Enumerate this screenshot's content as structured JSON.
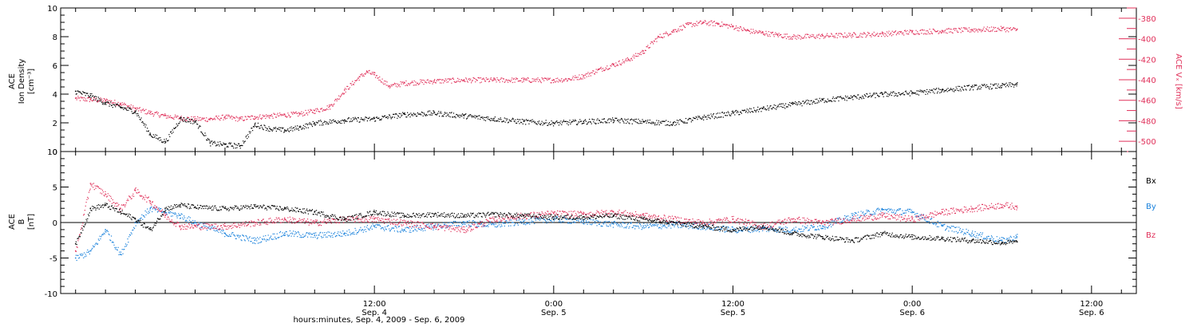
{
  "colors": {
    "black": "#000000",
    "pink": "#e0305a",
    "blue": "#1a82dc"
  },
  "x_axis": {
    "hours_range": [
      -9,
      63
    ],
    "major_hours": [
      12,
      24,
      36,
      48,
      60
    ],
    "major_time_labels": [
      "12:00",
      "0:00",
      "12:00",
      "0:00",
      "12:00"
    ],
    "major_date_labels": [
      "Sep. 4",
      "Sep. 5",
      "Sep. 5",
      "Sep. 6",
      "Sep. 6"
    ],
    "minor_step_hours": 2,
    "title": "hours:minutes, Sep.  4, 2009 - Sep.  6, 2009"
  },
  "chart_data": [
    {
      "type": "scatter",
      "panel": "top",
      "ylabel_lines": [
        "ACE",
        "Ion Density",
        "[cm⁻³]"
      ],
      "ylim": [
        0,
        10
      ],
      "yticks": [
        0,
        2,
        4,
        6,
        8,
        10
      ],
      "y2label": "ACE Vₓ [km/s]",
      "y2lim": [
        -510,
        -370
      ],
      "y2ticks": [
        -380,
        -400,
        -420,
        -440,
        -460,
        -480,
        -500
      ],
      "series": [
        {
          "name": "",
          "axis": "left",
          "color": "#000000",
          "x": [
            -8,
            -7,
            -6,
            -5,
            -4,
            -3,
            -2,
            -1,
            0,
            1,
            2,
            3,
            4,
            5,
            6,
            7,
            8,
            10,
            12,
            14,
            16,
            18,
            20,
            22,
            24,
            26,
            28,
            30,
            32,
            34,
            36,
            38,
            40,
            42,
            44,
            46,
            48,
            50,
            52,
            54,
            55
          ],
          "y": [
            4.2,
            3.9,
            3.4,
            3.1,
            2.8,
            1.2,
            0.7,
            2.3,
            2.1,
            0.6,
            0.5,
            0.4,
            1.9,
            1.6,
            1.5,
            1.7,
            2.0,
            2.2,
            2.3,
            2.6,
            2.7,
            2.5,
            2.3,
            2.1,
            2.0,
            2.1,
            2.2,
            2.1,
            2.0,
            2.4,
            2.7,
            3.0,
            3.3,
            3.6,
            3.8,
            4.0,
            4.1,
            4.3,
            4.5,
            4.6,
            4.7
          ]
        },
        {
          "name": "",
          "axis": "right",
          "color": "#e0305a",
          "x": [
            -8,
            -7,
            -6,
            -5,
            -4,
            -3,
            -2,
            -1,
            0,
            1,
            2,
            3,
            4,
            5,
            6,
            7,
            8,
            9,
            10,
            11,
            11.5,
            12,
            13,
            14,
            16,
            18,
            20,
            22,
            24,
            25,
            26,
            27,
            28,
            29,
            30,
            31,
            32,
            33,
            34,
            35,
            36,
            37,
            38,
            39,
            40,
            42,
            44,
            46,
            48,
            50,
            52,
            54,
            55
          ],
          "y": [
            -458,
            -459,
            -460,
            -463,
            -468,
            -472,
            -475,
            -477,
            -478,
            -478,
            -476,
            -478,
            -476,
            -475,
            -474,
            -473,
            -470,
            -466,
            -450,
            -437,
            -432,
            -435,
            -446,
            -443,
            -441,
            -440,
            -440,
            -440,
            -440,
            -439,
            -436,
            -430,
            -425,
            -420,
            -412,
            -398,
            -392,
            -386,
            -384,
            -385,
            -388,
            -392,
            -394,
            -396,
            -398,
            -397,
            -396,
            -395,
            -393,
            -392,
            -391,
            -390,
            -391
          ]
        }
      ]
    },
    {
      "type": "scatter",
      "panel": "bottom",
      "ylabel_lines": [
        "ACE",
        "B",
        "[nT]"
      ],
      "ylim": [
        -10,
        10
      ],
      "yticks": [
        -10,
        -5,
        0,
        5,
        10
      ],
      "legend_position": "right",
      "series": [
        {
          "name": "Bx",
          "color": "#000000",
          "x": [
            -8,
            -7,
            -6,
            -5,
            -4,
            -3,
            -2,
            -1,
            0,
            2,
            4,
            6,
            8,
            10,
            12,
            14,
            16,
            18,
            20,
            22,
            24,
            26,
            28,
            30,
            32,
            34,
            36,
            38,
            40,
            42,
            44,
            46,
            48,
            50,
            52,
            54,
            55
          ],
          "y": [
            -3.0,
            2.0,
            2.5,
            1.5,
            0.5,
            -1.0,
            2.0,
            2.5,
            2.2,
            2.0,
            2.3,
            2.0,
            1.5,
            0.5,
            1.5,
            1.0,
            1.2,
            1.0,
            1.2,
            1.0,
            0.8,
            0.8,
            1.0,
            0.5,
            0.0,
            -0.5,
            -1.0,
            -0.5,
            -1.5,
            -2.0,
            -2.5,
            -1.5,
            -2.0,
            -2.2,
            -2.5,
            -2.8,
            -2.7
          ]
        },
        {
          "name": "By",
          "color": "#1a82dc",
          "x": [
            -8,
            -7,
            -6,
            -5,
            -4,
            -3,
            -2,
            -1,
            0,
            2,
            4,
            6,
            8,
            10,
            12,
            14,
            16,
            18,
            20,
            22,
            24,
            26,
            28,
            30,
            32,
            34,
            36,
            38,
            40,
            42,
            44,
            46,
            48,
            50,
            52,
            54,
            55
          ],
          "y": [
            -5.0,
            -4.0,
            -1.0,
            -4.5,
            0.0,
            2.0,
            1.5,
            1.0,
            0.0,
            -1.5,
            -2.5,
            -1.5,
            -1.8,
            -1.5,
            -0.5,
            -1.0,
            -0.5,
            0.0,
            -0.3,
            0.2,
            0.5,
            0.2,
            -0.2,
            -0.5,
            -0.3,
            -0.5,
            -1.0,
            -0.8,
            -1.0,
            -0.5,
            1.0,
            1.8,
            1.5,
            -0.5,
            -1.5,
            -2.5,
            -2.0
          ]
        },
        {
          "name": "Bz",
          "color": "#e0305a",
          "x": [
            -8,
            -7,
            -6,
            -5,
            -4,
            -3,
            -2,
            -1,
            0,
            2,
            4,
            6,
            8,
            10,
            12,
            14,
            16,
            18,
            20,
            22,
            24,
            26,
            28,
            30,
            32,
            34,
            36,
            38,
            40,
            42,
            44,
            46,
            48,
            50,
            52,
            54,
            55
          ],
          "y": [
            -4.0,
            5.5,
            4.0,
            2.0,
            4.5,
            3.0,
            1.0,
            -0.5,
            -0.5,
            -0.5,
            0.0,
            0.5,
            0.0,
            0.5,
            0.5,
            0.0,
            -0.5,
            -1.0,
            0.5,
            1.0,
            1.3,
            1.2,
            1.5,
            1.0,
            0.5,
            0.0,
            0.5,
            -0.5,
            0.5,
            0.0,
            0.5,
            1.0,
            0.5,
            1.5,
            2.0,
            2.5,
            2.3
          ]
        }
      ]
    }
  ]
}
